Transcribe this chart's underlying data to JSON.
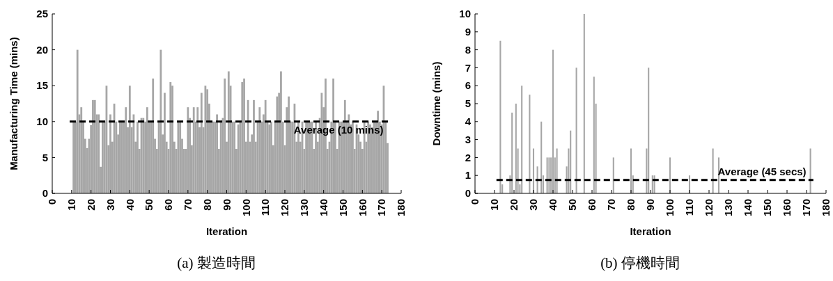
{
  "chart_data": [
    {
      "type": "bar",
      "xlabel": "Iteration",
      "ylabel": "Manufacturing Time (mins)",
      "color": "#a6a6a6",
      "x": [
        11,
        12,
        13,
        14,
        15,
        16,
        17,
        18,
        19,
        20,
        21,
        22,
        23,
        24,
        25,
        26,
        27,
        28,
        29,
        30,
        31,
        32,
        33,
        34,
        35,
        36,
        37,
        38,
        39,
        40,
        41,
        42,
        43,
        44,
        45,
        46,
        47,
        48,
        49,
        50,
        51,
        52,
        53,
        54,
        55,
        56,
        57,
        58,
        59,
        60,
        61,
        62,
        63,
        64,
        65,
        66,
        67,
        68,
        69,
        70,
        71,
        72,
        73,
        74,
        75,
        76,
        77,
        78,
        79,
        80,
        81,
        82,
        83,
        84,
        85,
        86,
        87,
        88,
        89,
        90,
        91,
        92,
        93,
        94,
        95,
        96,
        97,
        98,
        99,
        100,
        101,
        102,
        103,
        104,
        105,
        106,
        107,
        108,
        109,
        110,
        111,
        112,
        113,
        114,
        115,
        116,
        117,
        118,
        119,
        120,
        121,
        122,
        123,
        124,
        125,
        126,
        127,
        128,
        129,
        130,
        131,
        132,
        133,
        134,
        135,
        136,
        137,
        138,
        139,
        140,
        141,
        142,
        143,
        144,
        145,
        146,
        147,
        148,
        149,
        150,
        151,
        152,
        153,
        154,
        155,
        156,
        157,
        158,
        159,
        160,
        161,
        162,
        163,
        164,
        165,
        166,
        167,
        168,
        169,
        170,
        171,
        172,
        173
      ],
      "values": [
        10,
        10,
        20,
        11,
        12,
        10,
        7.6,
        6.3,
        7.6,
        9.5,
        13,
        13,
        11,
        11,
        3.7,
        10,
        10,
        15,
        6.7,
        11,
        7.2,
        12.5,
        10,
        8.2,
        10,
        10,
        10,
        12,
        9.2,
        15,
        9.2,
        11,
        7.2,
        10,
        6.2,
        10.5,
        10.5,
        10,
        12,
        10,
        10,
        16,
        7.6,
        6.2,
        10,
        20,
        8.2,
        14,
        7.2,
        6.2,
        15.5,
        15,
        7.2,
        6.2,
        10,
        10,
        7.6,
        6.2,
        6.2,
        12,
        10.5,
        6.7,
        12,
        10,
        12,
        9.2,
        14,
        9.2,
        15,
        14.5,
        12.5,
        10,
        10,
        10,
        11,
        6.2,
        10,
        10.5,
        16,
        7.2,
        17,
        15,
        10,
        10,
        6.2,
        9.6,
        10,
        15.5,
        16,
        7.2,
        13,
        7.2,
        8.2,
        13,
        7.2,
        10,
        12,
        10,
        11,
        13,
        10,
        9.6,
        10,
        6.7,
        10,
        13.5,
        14,
        17,
        10,
        6.7,
        12,
        13.5,
        10,
        10,
        12.5,
        7.2,
        10,
        7.2,
        10,
        6.2,
        10,
        10,
        10,
        10,
        6.2,
        10,
        7.2,
        10.5,
        14,
        12,
        16,
        6.2,
        7.2,
        10,
        16,
        10,
        6.2,
        10,
        10,
        10,
        13,
        10,
        11,
        9.6,
        10,
        6.2,
        9.6,
        8.2,
        7.2,
        6.2,
        10,
        7.2,
        10,
        9.6,
        9.2,
        10,
        10,
        11.5,
        10,
        9.6,
        15,
        10,
        7
      ],
      "xlim": [
        0,
        180
      ],
      "xticks": [
        0,
        10,
        20,
        30,
        40,
        50,
        60,
        70,
        80,
        90,
        100,
        110,
        120,
        130,
        140,
        150,
        160,
        170,
        180
      ],
      "ylim": [
        0,
        25
      ],
      "yticks": [
        0,
        5,
        10,
        15,
        20,
        25
      ],
      "ref_lines": [
        {
          "axis": "y",
          "value": 10,
          "label": "Average (10 mins)",
          "color": "#000000",
          "line_style": "dashed"
        }
      ],
      "annotations": [
        "(a) 製造時間"
      ]
    },
    {
      "type": "bar",
      "xlabel": "Iteration",
      "ylabel": "Downtime (mins)",
      "color": "#a6a6a6",
      "x": [
        13,
        14,
        18,
        19,
        21,
        22,
        23,
        24,
        28,
        30,
        32,
        34,
        35,
        37,
        38,
        39,
        40,
        41,
        42,
        47,
        48,
        49,
        52,
        56,
        61,
        62,
        71,
        80,
        81,
        88,
        89,
        91,
        92,
        100,
        110,
        122,
        125,
        172
      ],
      "values": [
        8.5,
        0.5,
        1,
        4.5,
        5,
        2.5,
        0.5,
        6,
        5.5,
        2.5,
        1.5,
        4,
        1,
        2,
        2,
        2,
        8,
        2,
        2.5,
        1.5,
        2.5,
        3.5,
        7,
        10,
        6.5,
        5,
        2,
        2.5,
        1,
        2.5,
        7,
        1,
        1,
        2,
        1,
        2.5,
        2,
        2.5
      ],
      "xlim": [
        0,
        180
      ],
      "xticks": [
        0,
        10,
        20,
        30,
        40,
        50,
        60,
        70,
        80,
        90,
        100,
        110,
        120,
        130,
        140,
        150,
        160,
        170,
        180
      ],
      "ylim": [
        0,
        10
      ],
      "yticks": [
        0,
        1,
        2,
        3,
        4,
        5,
        6,
        7,
        8,
        9,
        10
      ],
      "ref_lines": [
        {
          "axis": "y",
          "value": 0.75,
          "label": "Average (45 secs)",
          "color": "#000000",
          "line_style": "dashed"
        }
      ],
      "annotations": [
        "(b) 停機時間"
      ]
    }
  ]
}
